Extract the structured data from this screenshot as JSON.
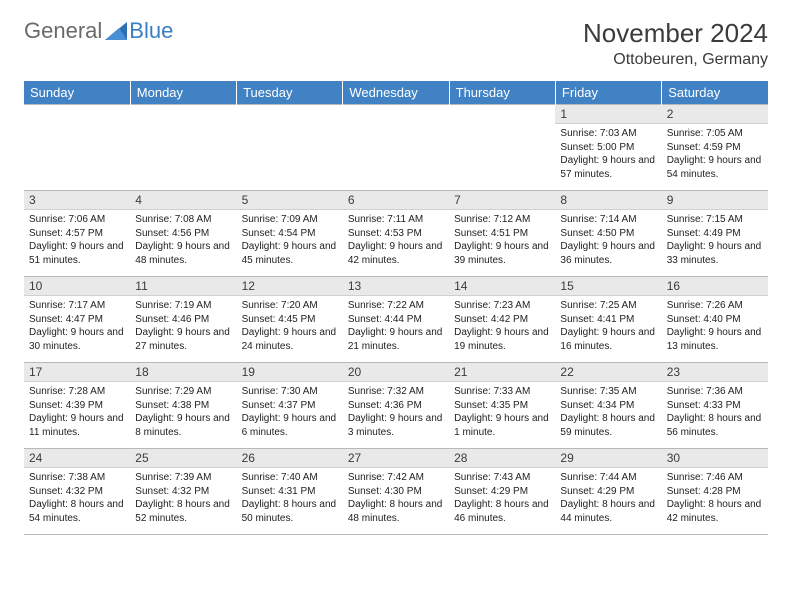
{
  "logo": {
    "text1": "General",
    "text2": "Blue"
  },
  "title": "November 2024",
  "location": "Ottobeuren, Germany",
  "headers": [
    "Sunday",
    "Monday",
    "Tuesday",
    "Wednesday",
    "Thursday",
    "Friday",
    "Saturday"
  ],
  "header_bg": "#4082c4",
  "header_fg": "#ffffff",
  "daynum_bg": "#e9e9e9",
  "grid_color": "#b8b8b8",
  "text_color": "#222222",
  "title_color": "#3b3b3b",
  "body_fontsize": 10,
  "weeks": [
    [
      {
        "n": "",
        "sr": "",
        "ss": "",
        "dl": ""
      },
      {
        "n": "",
        "sr": "",
        "ss": "",
        "dl": ""
      },
      {
        "n": "",
        "sr": "",
        "ss": "",
        "dl": ""
      },
      {
        "n": "",
        "sr": "",
        "ss": "",
        "dl": ""
      },
      {
        "n": "",
        "sr": "",
        "ss": "",
        "dl": ""
      },
      {
        "n": "1",
        "sr": "Sunrise: 7:03 AM",
        "ss": "Sunset: 5:00 PM",
        "dl": "Daylight: 9 hours and 57 minutes."
      },
      {
        "n": "2",
        "sr": "Sunrise: 7:05 AM",
        "ss": "Sunset: 4:59 PM",
        "dl": "Daylight: 9 hours and 54 minutes."
      }
    ],
    [
      {
        "n": "3",
        "sr": "Sunrise: 7:06 AM",
        "ss": "Sunset: 4:57 PM",
        "dl": "Daylight: 9 hours and 51 minutes."
      },
      {
        "n": "4",
        "sr": "Sunrise: 7:08 AM",
        "ss": "Sunset: 4:56 PM",
        "dl": "Daylight: 9 hours and 48 minutes."
      },
      {
        "n": "5",
        "sr": "Sunrise: 7:09 AM",
        "ss": "Sunset: 4:54 PM",
        "dl": "Daylight: 9 hours and 45 minutes."
      },
      {
        "n": "6",
        "sr": "Sunrise: 7:11 AM",
        "ss": "Sunset: 4:53 PM",
        "dl": "Daylight: 9 hours and 42 minutes."
      },
      {
        "n": "7",
        "sr": "Sunrise: 7:12 AM",
        "ss": "Sunset: 4:51 PM",
        "dl": "Daylight: 9 hours and 39 minutes."
      },
      {
        "n": "8",
        "sr": "Sunrise: 7:14 AM",
        "ss": "Sunset: 4:50 PM",
        "dl": "Daylight: 9 hours and 36 minutes."
      },
      {
        "n": "9",
        "sr": "Sunrise: 7:15 AM",
        "ss": "Sunset: 4:49 PM",
        "dl": "Daylight: 9 hours and 33 minutes."
      }
    ],
    [
      {
        "n": "10",
        "sr": "Sunrise: 7:17 AM",
        "ss": "Sunset: 4:47 PM",
        "dl": "Daylight: 9 hours and 30 minutes."
      },
      {
        "n": "11",
        "sr": "Sunrise: 7:19 AM",
        "ss": "Sunset: 4:46 PM",
        "dl": "Daylight: 9 hours and 27 minutes."
      },
      {
        "n": "12",
        "sr": "Sunrise: 7:20 AM",
        "ss": "Sunset: 4:45 PM",
        "dl": "Daylight: 9 hours and 24 minutes."
      },
      {
        "n": "13",
        "sr": "Sunrise: 7:22 AM",
        "ss": "Sunset: 4:44 PM",
        "dl": "Daylight: 9 hours and 21 minutes."
      },
      {
        "n": "14",
        "sr": "Sunrise: 7:23 AM",
        "ss": "Sunset: 4:42 PM",
        "dl": "Daylight: 9 hours and 19 minutes."
      },
      {
        "n": "15",
        "sr": "Sunrise: 7:25 AM",
        "ss": "Sunset: 4:41 PM",
        "dl": "Daylight: 9 hours and 16 minutes."
      },
      {
        "n": "16",
        "sr": "Sunrise: 7:26 AM",
        "ss": "Sunset: 4:40 PM",
        "dl": "Daylight: 9 hours and 13 minutes."
      }
    ],
    [
      {
        "n": "17",
        "sr": "Sunrise: 7:28 AM",
        "ss": "Sunset: 4:39 PM",
        "dl": "Daylight: 9 hours and 11 minutes."
      },
      {
        "n": "18",
        "sr": "Sunrise: 7:29 AM",
        "ss": "Sunset: 4:38 PM",
        "dl": "Daylight: 9 hours and 8 minutes."
      },
      {
        "n": "19",
        "sr": "Sunrise: 7:30 AM",
        "ss": "Sunset: 4:37 PM",
        "dl": "Daylight: 9 hours and 6 minutes."
      },
      {
        "n": "20",
        "sr": "Sunrise: 7:32 AM",
        "ss": "Sunset: 4:36 PM",
        "dl": "Daylight: 9 hours and 3 minutes."
      },
      {
        "n": "21",
        "sr": "Sunrise: 7:33 AM",
        "ss": "Sunset: 4:35 PM",
        "dl": "Daylight: 9 hours and 1 minute."
      },
      {
        "n": "22",
        "sr": "Sunrise: 7:35 AM",
        "ss": "Sunset: 4:34 PM",
        "dl": "Daylight: 8 hours and 59 minutes."
      },
      {
        "n": "23",
        "sr": "Sunrise: 7:36 AM",
        "ss": "Sunset: 4:33 PM",
        "dl": "Daylight: 8 hours and 56 minutes."
      }
    ],
    [
      {
        "n": "24",
        "sr": "Sunrise: 7:38 AM",
        "ss": "Sunset: 4:32 PM",
        "dl": "Daylight: 8 hours and 54 minutes."
      },
      {
        "n": "25",
        "sr": "Sunrise: 7:39 AM",
        "ss": "Sunset: 4:32 PM",
        "dl": "Daylight: 8 hours and 52 minutes."
      },
      {
        "n": "26",
        "sr": "Sunrise: 7:40 AM",
        "ss": "Sunset: 4:31 PM",
        "dl": "Daylight: 8 hours and 50 minutes."
      },
      {
        "n": "27",
        "sr": "Sunrise: 7:42 AM",
        "ss": "Sunset: 4:30 PM",
        "dl": "Daylight: 8 hours and 48 minutes."
      },
      {
        "n": "28",
        "sr": "Sunrise: 7:43 AM",
        "ss": "Sunset: 4:29 PM",
        "dl": "Daylight: 8 hours and 46 minutes."
      },
      {
        "n": "29",
        "sr": "Sunrise: 7:44 AM",
        "ss": "Sunset: 4:29 PM",
        "dl": "Daylight: 8 hours and 44 minutes."
      },
      {
        "n": "30",
        "sr": "Sunrise: 7:46 AM",
        "ss": "Sunset: 4:28 PM",
        "dl": "Daylight: 8 hours and 42 minutes."
      }
    ]
  ]
}
